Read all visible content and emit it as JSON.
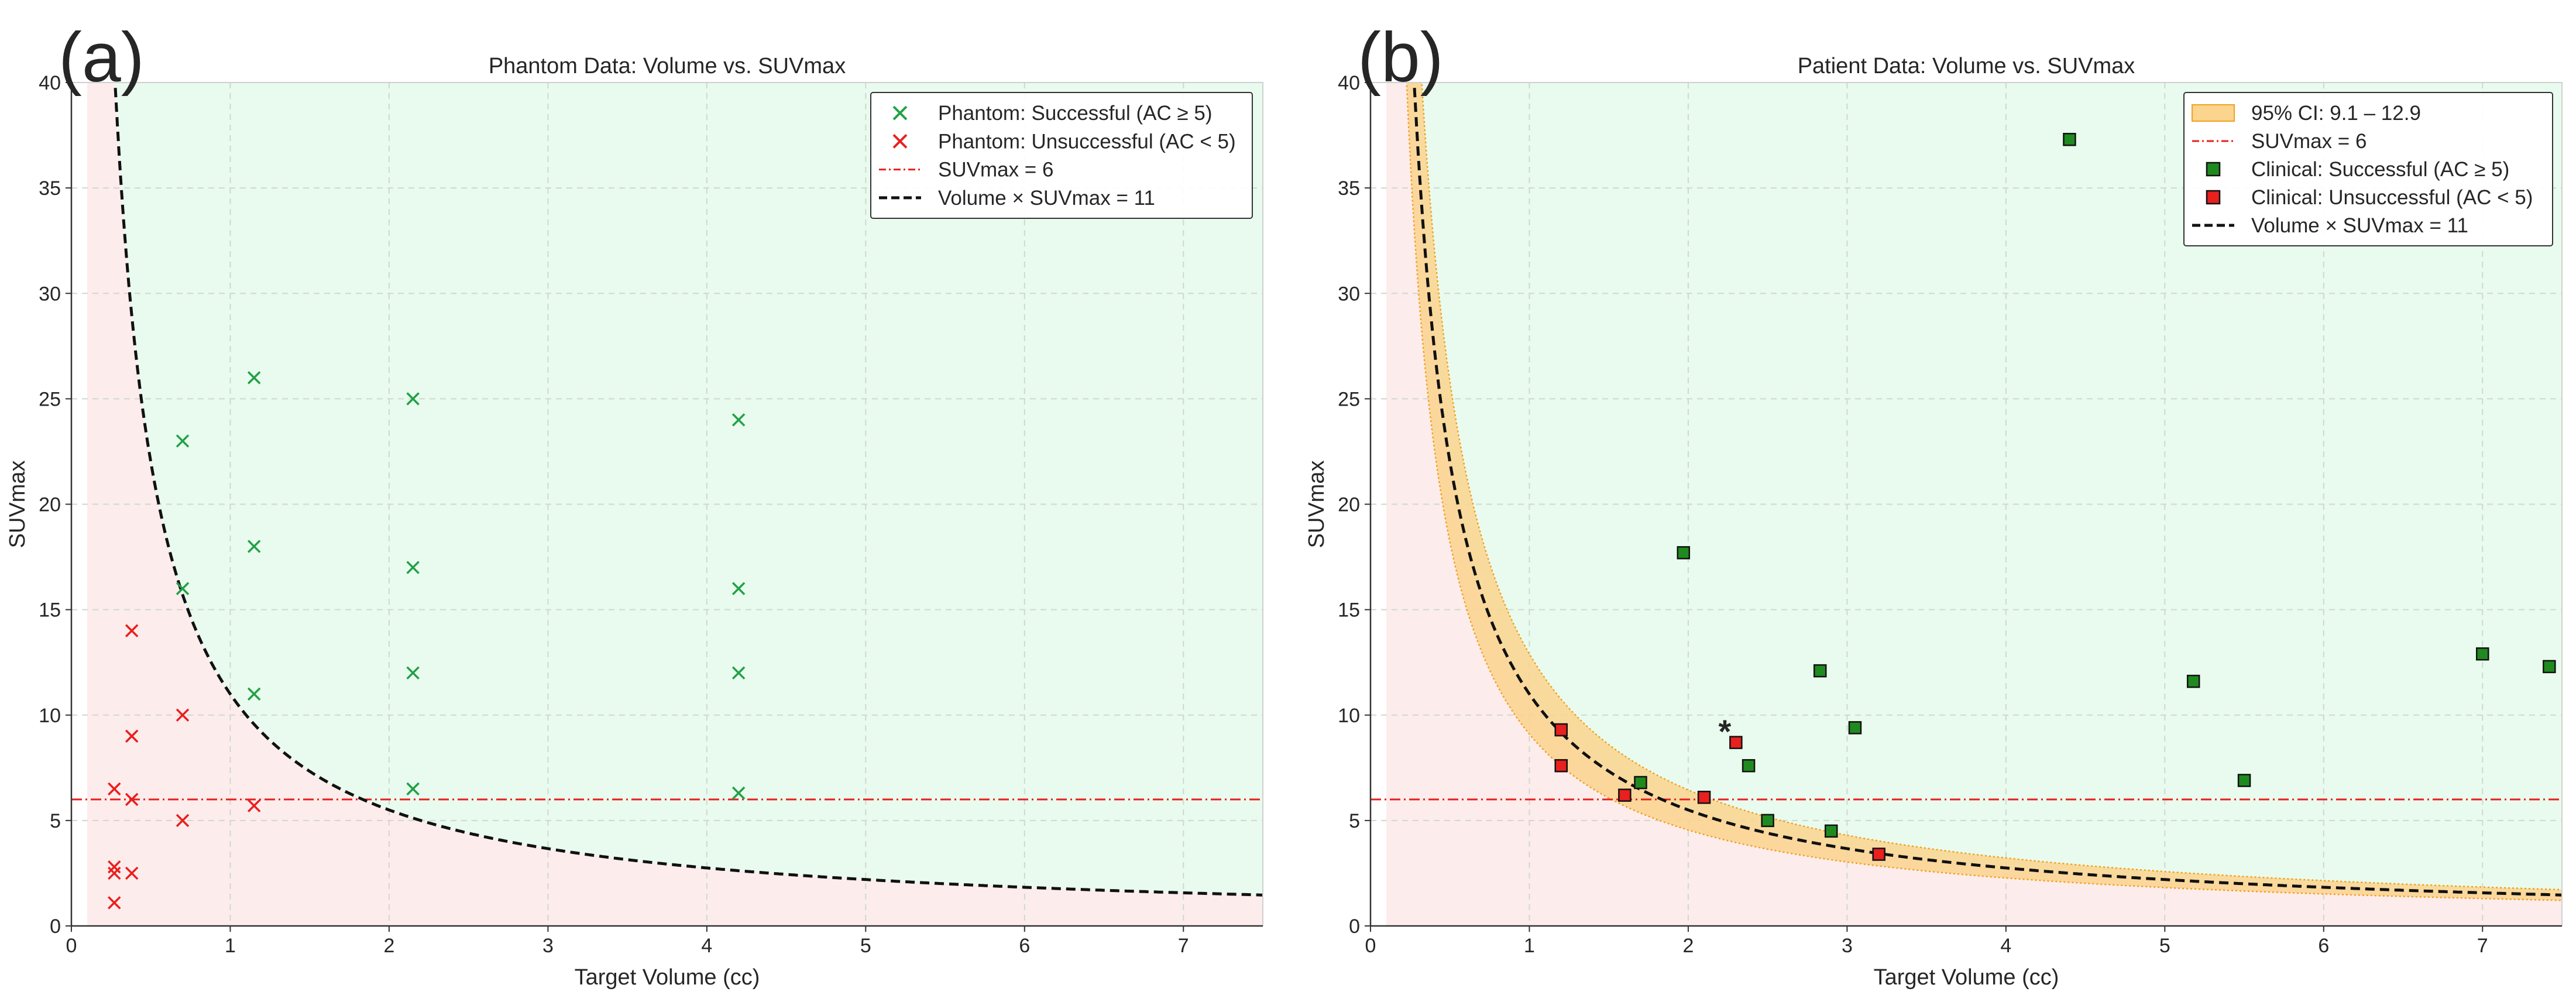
{
  "chart_data": [
    {
      "id": "a",
      "type": "scatter",
      "panel_label": "(a)",
      "title": "Phantom Data: Volume vs. SUVmax",
      "xlabel": "Target Volume (cc)",
      "ylabel": "SUVmax",
      "xlim": [
        0,
        7.5
      ],
      "ylim": [
        0,
        40
      ],
      "xticks": [
        0,
        1,
        2,
        3,
        4,
        5,
        6,
        7
      ],
      "yticks": [
        0,
        5,
        10,
        15,
        20,
        25,
        30,
        35,
        40
      ],
      "grid": true,
      "threshold_x": 0.1,
      "threshold_suv": 6,
      "curve_k": 11,
      "legend_position": "upper right",
      "legend": [
        {
          "key": "success",
          "label": "Phantom: Successful (AC ≥ 5)",
          "marker": "x",
          "color": "#22a046"
        },
        {
          "key": "fail",
          "label": "Phantom: Unsuccessful (AC < 5)",
          "marker": "x",
          "color": "#e8201e"
        },
        {
          "key": "suv",
          "label": "SUVmax = 6",
          "marker": "dashdot-line",
          "color": "#e8201e"
        },
        {
          "key": "curve",
          "label": "Volume × SUVmax = 11",
          "marker": "dashed-line",
          "color": "#111111"
        }
      ],
      "series": [
        {
          "name": "Phantom: Successful (AC ≥ 5)",
          "points": [
            {
              "x": 0.7,
              "y": 23
            },
            {
              "x": 0.7,
              "y": 16
            },
            {
              "x": 1.15,
              "y": 26
            },
            {
              "x": 1.15,
              "y": 18
            },
            {
              "x": 1.15,
              "y": 11
            },
            {
              "x": 2.15,
              "y": 25
            },
            {
              "x": 2.15,
              "y": 17
            },
            {
              "x": 2.15,
              "y": 12
            },
            {
              "x": 2.15,
              "y": 6.5
            },
            {
              "x": 4.2,
              "y": 24
            },
            {
              "x": 4.2,
              "y": 16
            },
            {
              "x": 4.2,
              "y": 12
            },
            {
              "x": 4.2,
              "y": 6.3
            }
          ]
        },
        {
          "name": "Phantom: Unsuccessful (AC < 5)",
          "points": [
            {
              "x": 0.27,
              "y": 6.5
            },
            {
              "x": 0.27,
              "y": 2.8
            },
            {
              "x": 0.27,
              "y": 2.5
            },
            {
              "x": 0.27,
              "y": 1.1
            },
            {
              "x": 0.38,
              "y": 14
            },
            {
              "x": 0.38,
              "y": 9
            },
            {
              "x": 0.38,
              "y": 6
            },
            {
              "x": 0.38,
              "y": 2.5
            },
            {
              "x": 0.7,
              "y": 10
            },
            {
              "x": 0.7,
              "y": 5
            },
            {
              "x": 1.15,
              "y": 5.7
            }
          ]
        }
      ]
    },
    {
      "id": "b",
      "type": "scatter",
      "panel_label": "(b)",
      "title": "Patient Data: Volume vs. SUVmax",
      "xlabel": "Target Volume (cc)",
      "ylabel": "SUVmax",
      "xlim": [
        0,
        7.5
      ],
      "ylim": [
        0,
        40
      ],
      "xticks": [
        0,
        1,
        2,
        3,
        4,
        5,
        6,
        7
      ],
      "yticks": [
        0,
        5,
        10,
        15,
        20,
        25,
        30,
        35,
        40
      ],
      "grid": true,
      "threshold_x": 0.1,
      "threshold_suv": 6,
      "curve_k": 11,
      "ci_band": [
        9.1,
        12.9
      ],
      "legend_position": "upper right",
      "legend": [
        {
          "key": "ci",
          "label": "95% CI: 9.1 – 12.9",
          "marker": "band",
          "color": "#fbd48e"
        },
        {
          "key": "suv",
          "label": "SUVmax = 6",
          "marker": "dashdot-line",
          "color": "#e8201e"
        },
        {
          "key": "success",
          "label": "Clinical: Successful (AC ≥ 5)",
          "marker": "square",
          "color": "#1f8a1f"
        },
        {
          "key": "fail",
          "label": "Clinical: Unsuccessful (AC < 5)",
          "marker": "square",
          "color": "#e8201e"
        },
        {
          "key": "curve",
          "label": "Volume × SUVmax = 11",
          "marker": "dashed-line",
          "color": "#111111"
        }
      ],
      "series": [
        {
          "name": "Clinical: Successful (AC ≥ 5)",
          "points": [
            {
              "x": 1.7,
              "y": 6.8
            },
            {
              "x": 1.97,
              "y": 17.7
            },
            {
              "x": 2.38,
              "y": 7.6
            },
            {
              "x": 2.5,
              "y": 5
            },
            {
              "x": 2.83,
              "y": 12.1
            },
            {
              "x": 2.9,
              "y": 4.5
            },
            {
              "x": 3.05,
              "y": 9.4
            },
            {
              "x": 4.4,
              "y": 37.3
            },
            {
              "x": 5.18,
              "y": 11.6
            },
            {
              "x": 5.5,
              "y": 6.9
            },
            {
              "x": 7.0,
              "y": 12.9
            },
            {
              "x": 7.42,
              "y": 12.3
            }
          ]
        },
        {
          "name": "Clinical: Unsuccessful (AC < 5)",
          "points": [
            {
              "x": 1.2,
              "y": 9.3
            },
            {
              "x": 1.2,
              "y": 7.6
            },
            {
              "x": 1.6,
              "y": 6.2
            },
            {
              "x": 2.1,
              "y": 6.1
            },
            {
              "x": 2.3,
              "y": 8.7
            },
            {
              "x": 3.2,
              "y": 3.4
            }
          ]
        }
      ],
      "annotations": [
        {
          "text": "*",
          "x": 2.23,
          "y": 9.3
        }
      ]
    }
  ]
}
